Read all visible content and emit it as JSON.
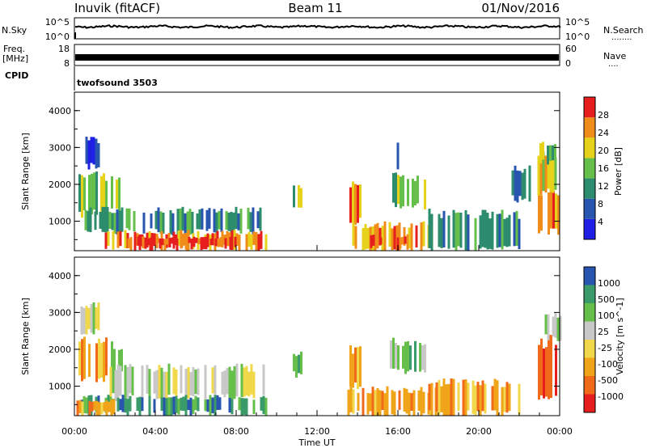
{
  "header": {
    "station": "Inuvik (fitACF)",
    "beam": "Beam 11",
    "date": "01/Nov/2016"
  },
  "top_panels": {
    "nsky": {
      "label": "N.Sky",
      "tick_top": "10^5",
      "tick_bottom": "10^0",
      "right_label": "N.Search",
      "right_tick_top": "10^5",
      "right_tick_bottom": "10^0",
      "right_marker": "........"
    },
    "freq": {
      "label_line1": "Freq.",
      "label_line2": "[MHz]",
      "tick_top": "18",
      "tick_bottom": "8",
      "right_label": "Nave",
      "right_tick_top": "60",
      "right_tick_bottom": "0",
      "right_marker": "...."
    },
    "cpid": {
      "label": "CPID",
      "value": "twofsound 3503"
    }
  },
  "chart_data": [
    {
      "type": "heatmap",
      "name": "power",
      "ylabel": "Slant Range [km]",
      "yticks": [
        "1000",
        "2000",
        "3000",
        "4000"
      ],
      "ylim": [
        200,
        4500
      ],
      "colorbar_label": "Power [dB]",
      "colorbar_ticks": [
        "4",
        "8",
        "12",
        "16",
        "20",
        "24",
        "28"
      ],
      "colors": [
        "#1f1fe6",
        "#2855b0",
        "#2e8c6e",
        "#66bf4a",
        "#e6d21a",
        "#f08c1a",
        "#e61e1e"
      ],
      "regions": [
        {
          "t": [
            0.2,
            1.6
          ],
          "r": [
            1200,
            2200
          ],
          "level": 3
        },
        {
          "t": [
            1.8,
            2.4
          ],
          "r": [
            1300,
            2100
          ],
          "level": 3
        },
        {
          "t": [
            0.3,
            1.2
          ],
          "r": [
            2500,
            3200
          ],
          "level": 1
        },
        {
          "t": [
            0.5,
            9.2
          ],
          "r": [
            700,
            1300
          ],
          "level": 2
        },
        {
          "t": [
            1.5,
            9.5
          ],
          "r": [
            250,
            700
          ],
          "level": 5
        },
        {
          "t": [
            2.5,
            8.0
          ],
          "r": [
            300,
            550
          ],
          "level": 6
        },
        {
          "t": [
            10.8,
            11.2
          ],
          "r": [
            1300,
            1900
          ],
          "level": 3
        },
        {
          "t": [
            13.6,
            14.2
          ],
          "r": [
            1000,
            2000
          ],
          "level": 5
        },
        {
          "t": [
            13.5,
            17.5
          ],
          "r": [
            250,
            900
          ],
          "level": 5
        },
        {
          "t": [
            14.5,
            16.5
          ],
          "r": [
            300,
            600
          ],
          "level": 6
        },
        {
          "t": [
            15.6,
            17.3
          ],
          "r": [
            1400,
            2200
          ],
          "level": 3
        },
        {
          "t": [
            15.7,
            16.0
          ],
          "r": [
            2500,
            3100
          ],
          "level": 1
        },
        {
          "t": [
            17.5,
            22.0
          ],
          "r": [
            250,
            1200
          ],
          "level": 2
        },
        {
          "t": [
            21.5,
            22.6
          ],
          "r": [
            1600,
            2400
          ],
          "level": 2
        },
        {
          "t": [
            22.8,
            24.0
          ],
          "r": [
            700,
            1700
          ],
          "level": 5
        },
        {
          "t": [
            22.9,
            24.0
          ],
          "r": [
            1800,
            2800
          ],
          "level": 4
        },
        {
          "t": [
            23.0,
            23.8
          ],
          "r": [
            2600,
            3100
          ],
          "level": 3
        }
      ],
      "x": {
        "min": 0,
        "max": 24
      }
    },
    {
      "type": "heatmap",
      "name": "velocity",
      "ylabel": "Slant Range [km]",
      "yticks": [
        "1000",
        "2000",
        "3000",
        "4000"
      ],
      "ylim": [
        200,
        4500
      ],
      "colorbar_label": "Velocity [m s^-1]",
      "colorbar_ticks": [
        "-1000",
        "-500",
        "-100",
        "-25",
        "25",
        "100",
        "500",
        "1000"
      ],
      "colors": [
        "#e61e1e",
        "#f06a1a",
        "#f0a41a",
        "#f0d84a",
        "#c8c8c8",
        "#66bf4a",
        "#3a9a6a",
        "#2855b0"
      ],
      "regions": [
        {
          "t": [
            0.2,
            1.6
          ],
          "r": [
            1200,
            2200
          ],
          "level": 2
        },
        {
          "t": [
            1.8,
            2.4
          ],
          "r": [
            1300,
            2100
          ],
          "level": 5
        },
        {
          "t": [
            0.3,
            1.2
          ],
          "r": [
            2500,
            3200
          ],
          "level": 4
        },
        {
          "t": [
            1.5,
            9.5
          ],
          "r": [
            700,
            1500
          ],
          "level": 4
        },
        {
          "t": [
            0.3,
            9.5
          ],
          "r": [
            250,
            700
          ],
          "level": 6
        },
        {
          "t": [
            0.1,
            2.0
          ],
          "r": [
            250,
            600
          ],
          "level": 2
        },
        {
          "t": [
            10.8,
            11.2
          ],
          "r": [
            1300,
            1900
          ],
          "level": 6
        },
        {
          "t": [
            13.6,
            14.2
          ],
          "r": [
            1000,
            2000
          ],
          "level": 2
        },
        {
          "t": [
            13.5,
            18.5
          ],
          "r": [
            250,
            900
          ],
          "level": 2
        },
        {
          "t": [
            15.6,
            17.3
          ],
          "r": [
            1400,
            2200
          ],
          "level": 5
        },
        {
          "t": [
            17.5,
            22.0
          ],
          "r": [
            250,
            1100
          ],
          "level": 2
        },
        {
          "t": [
            22.8,
            24.0
          ],
          "r": [
            700,
            2200
          ],
          "level": 1
        },
        {
          "t": [
            22.9,
            24.0
          ],
          "r": [
            2300,
            2900
          ],
          "level": 4
        }
      ],
      "x": {
        "min": 0,
        "max": 24
      }
    }
  ],
  "xaxis": {
    "ticks": [
      "00:00",
      "04:00",
      "08:00",
      "12:00",
      "16:00",
      "20:00",
      "00:00"
    ],
    "label": "Time UT"
  }
}
